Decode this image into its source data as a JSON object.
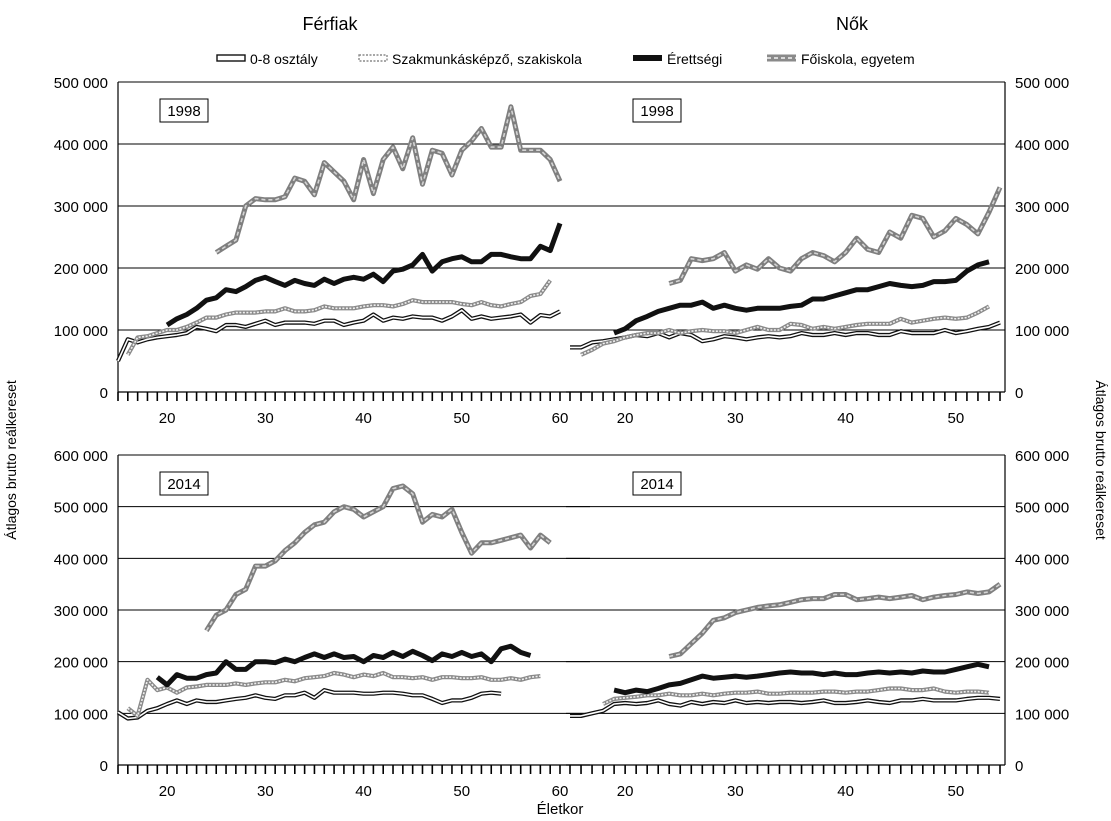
{
  "figure": {
    "panel_titles": [
      "Férfiak",
      "Nők"
    ],
    "xlabel": "Életkor",
    "ylabel": "Átlagos brutto reálkereset",
    "legend_position": "top"
  },
  "legend": [
    {
      "name": "0-8 osztály",
      "style": "outline-white"
    },
    {
      "name": "Szakmunkásképző, szakiskola",
      "style": "dotted-light"
    },
    {
      "name": "Érettségi",
      "style": "solid-black"
    },
    {
      "name": "Főiskola, egyetem",
      "style": "gray-dashed"
    }
  ],
  "colors": {
    "dark": "#111111",
    "light_gray": "#b5b5b5",
    "mid_gray": "#8a8a8a",
    "grid": "#000000"
  },
  "chart_data": [
    {
      "type": "line",
      "panel": "Férfiak",
      "year_label": "1998",
      "x_range": [
        15,
        60
      ],
      "ylim": [
        0,
        500000
      ],
      "yticks": [
        0,
        100000,
        200000,
        300000,
        400000,
        500000
      ],
      "ytick_labels": [
        "0",
        "100 000",
        "200 000",
        "300 000",
        "400 000",
        "500 000"
      ],
      "xticks": [
        20,
        30,
        40,
        50,
        60
      ],
      "y_axis_side": "left",
      "grid": true,
      "series": [
        {
          "name": "0-8 osztály",
          "start": 15,
          "values": [
            50000,
            85000,
            80000,
            85000,
            88000,
            90000,
            92000,
            95000,
            105000,
            102000,
            98000,
            108000,
            108000,
            105000,
            110000,
            115000,
            108000,
            112000,
            112000,
            112000,
            110000,
            115000,
            115000,
            108000,
            112000,
            115000,
            125000,
            115000,
            120000,
            118000,
            122000,
            120000,
            120000,
            115000,
            122000,
            132000,
            118000,
            122000,
            118000,
            120000,
            122000,
            125000,
            112000,
            124000,
            122000,
            130000
          ]
        },
        {
          "name": "Szakmunkásképző, szakiskola",
          "start": 16,
          "values": [
            60000,
            88000,
            90000,
            95000,
            100000,
            100000,
            105000,
            112000,
            120000,
            120000,
            125000,
            128000,
            128000,
            128000,
            130000,
            130000,
            135000,
            130000,
            130000,
            132000,
            138000,
            135000,
            135000,
            135000,
            138000,
            140000,
            140000,
            138000,
            142000,
            148000,
            145000,
            145000,
            145000,
            145000,
            142000,
            140000,
            145000,
            140000,
            138000,
            142000,
            145000,
            155000,
            158000,
            180000
          ]
        },
        {
          "name": "Érettségi",
          "start": 20,
          "values": [
            108000,
            118000,
            125000,
            135000,
            148000,
            152000,
            165000,
            162000,
            170000,
            180000,
            185000,
            178000,
            172000,
            180000,
            175000,
            172000,
            182000,
            175000,
            182000,
            185000,
            182000,
            190000,
            178000,
            195000,
            198000,
            205000,
            222000,
            195000,
            210000,
            215000,
            218000,
            210000,
            210000,
            222000,
            222000,
            218000,
            215000,
            215000,
            235000,
            228000,
            272000
          ]
        },
        {
          "name": "Főiskola, egyetem",
          "start": 25,
          "values": [
            225000,
            235000,
            245000,
            300000,
            312000,
            310000,
            310000,
            315000,
            345000,
            340000,
            318000,
            370000,
            355000,
            340000,
            310000,
            375000,
            320000,
            375000,
            395000,
            360000,
            410000,
            335000,
            390000,
            385000,
            350000,
            390000,
            405000,
            425000,
            395000,
            395000,
            460000,
            390000,
            390000,
            390000,
            375000,
            340000
          ]
        }
      ]
    },
    {
      "type": "line",
      "panel": "Nők",
      "year_label": "1998",
      "x_range": [
        15,
        54
      ],
      "ylim": [
        0,
        500000
      ],
      "yticks": [
        0,
        100000,
        200000,
        300000,
        400000,
        500000
      ],
      "ytick_labels": [
        "0",
        "100 000",
        "200 000",
        "300 000",
        "400 000",
        "500 000"
      ],
      "xticks": [
        20,
        30,
        40,
        50
      ],
      "y_axis_side": "right",
      "grid": true,
      "series": [
        {
          "name": "0-8 osztály",
          "start": 15,
          "values": [
            72000,
            72000,
            80000,
            82000,
            85000,
            88000,
            92000,
            90000,
            95000,
            88000,
            95000,
            92000,
            82000,
            85000,
            90000,
            88000,
            85000,
            88000,
            90000,
            88000,
            90000,
            95000,
            92000,
            92000,
            95000,
            92000,
            95000,
            95000,
            92000,
            92000,
            98000,
            95000,
            95000,
            95000,
            100000,
            95000,
            98000,
            102000,
            105000,
            112000
          ]
        },
        {
          "name": "Szakmunkásképző, szakiskola",
          "start": 16,
          "values": [
            60000,
            68000,
            78000,
            82000,
            88000,
            92000,
            95000,
            95000,
            100000,
            95000,
            98000,
            100000,
            98000,
            98000,
            95000,
            100000,
            105000,
            100000,
            100000,
            110000,
            108000,
            102000,
            105000,
            102000,
            105000,
            108000,
            110000,
            110000,
            110000,
            118000,
            112000,
            115000,
            118000,
            120000,
            118000,
            120000,
            128000,
            138000
          ]
        },
        {
          "name": "Érettségi",
          "start": 19,
          "values": [
            95000,
            102000,
            115000,
            122000,
            130000,
            135000,
            140000,
            140000,
            145000,
            135000,
            140000,
            135000,
            132000,
            135000,
            135000,
            135000,
            138000,
            140000,
            150000,
            150000,
            155000,
            160000,
            165000,
            165000,
            170000,
            175000,
            172000,
            170000,
            172000,
            178000,
            178000,
            180000,
            195000,
            205000,
            210000
          ]
        },
        {
          "name": "Főiskola, egyetem",
          "start": 24,
          "values": [
            175000,
            180000,
            215000,
            212000,
            215000,
            225000,
            195000,
            205000,
            198000,
            215000,
            200000,
            195000,
            215000,
            225000,
            220000,
            210000,
            225000,
            248000,
            230000,
            225000,
            258000,
            248000,
            285000,
            280000,
            250000,
            260000,
            280000,
            270000,
            255000,
            290000,
            330000
          ]
        }
      ]
    },
    {
      "type": "line",
      "panel": "Férfiak",
      "year_label": "2014",
      "x_range": [
        15,
        60
      ],
      "ylim": [
        0,
        600000
      ],
      "yticks": [
        0,
        100000,
        200000,
        300000,
        400000,
        500000,
        600000
      ],
      "ytick_labels": [
        "0",
        "100 000",
        "200 000",
        "300 000",
        "400 000",
        "500 000",
        "600 000"
      ],
      "xticks": [
        20,
        30,
        40,
        50,
        60
      ],
      "y_axis_side": "left",
      "grid": true,
      "series": [
        {
          "name": "0-8 osztály",
          "start": 15,
          "values": [
            102000,
            90000,
            92000,
            105000,
            110000,
            118000,
            125000,
            118000,
            125000,
            122000,
            122000,
            125000,
            128000,
            130000,
            135000,
            130000,
            128000,
            135000,
            135000,
            140000,
            130000,
            145000,
            140000,
            140000,
            140000,
            138000,
            138000,
            140000,
            140000,
            138000,
            135000,
            135000,
            128000,
            120000,
            125000,
            125000,
            130000,
            138000,
            140000,
            138000
          ]
        },
        {
          "name": "Szakmunkásképző, szakiskola",
          "start": 16,
          "values": [
            110000,
            95000,
            165000,
            145000,
            150000,
            140000,
            150000,
            152000,
            155000,
            155000,
            155000,
            158000,
            155000,
            158000,
            160000,
            160000,
            165000,
            162000,
            168000,
            170000,
            172000,
            178000,
            175000,
            170000,
            175000,
            172000,
            178000,
            170000,
            170000,
            168000,
            170000,
            165000,
            170000,
            170000,
            168000,
            168000,
            170000,
            165000,
            165000,
            168000,
            165000,
            170000,
            172000
          ]
        },
        {
          "name": "Érettségi",
          "start": 19,
          "values": [
            170000,
            155000,
            175000,
            168000,
            168000,
            175000,
            178000,
            200000,
            185000,
            185000,
            200000,
            200000,
            198000,
            205000,
            200000,
            208000,
            215000,
            208000,
            215000,
            208000,
            210000,
            200000,
            212000,
            208000,
            218000,
            210000,
            220000,
            212000,
            202000,
            215000,
            210000,
            218000,
            210000,
            215000,
            200000,
            225000,
            230000,
            218000,
            212000
          ]
        },
        {
          "name": "Főiskola, egyetem",
          "start": 24,
          "values": [
            260000,
            290000,
            300000,
            330000,
            340000,
            385000,
            385000,
            395000,
            415000,
            430000,
            450000,
            465000,
            470000,
            490000,
            500000,
            495000,
            480000,
            490000,
            500000,
            535000,
            540000,
            525000,
            470000,
            485000,
            480000,
            495000,
            450000,
            410000,
            430000,
            430000,
            435000,
            440000,
            445000,
            420000,
            445000,
            430000
          ]
        }
      ]
    },
    {
      "type": "line",
      "panel": "Nők",
      "year_label": "2014",
      "x_range": [
        15,
        54
      ],
      "ylim": [
        0,
        600000
      ],
      "yticks": [
        0,
        100000,
        200000,
        300000,
        400000,
        500000,
        600000
      ],
      "ytick_labels": [
        "0",
        "100 000",
        "200 000",
        "300 000",
        "400 000",
        "500 000",
        "600 000"
      ],
      "xticks": [
        20,
        30,
        40,
        50
      ],
      "y_axis_side": "right",
      "grid": true,
      "series": [
        {
          "name": "0-8 osztály",
          "start": 15,
          "values": [
            95000,
            95000,
            100000,
            105000,
            118000,
            120000,
            118000,
            120000,
            125000,
            118000,
            115000,
            122000,
            118000,
            122000,
            120000,
            125000,
            120000,
            122000,
            120000,
            122000,
            122000,
            120000,
            122000,
            125000,
            120000,
            120000,
            122000,
            125000,
            122000,
            120000,
            125000,
            125000,
            128000,
            125000,
            125000,
            125000,
            128000,
            130000,
            130000,
            128000
          ]
        },
        {
          "name": "Szakmunkásképző, szakiskola",
          "start": 18,
          "values": [
            118000,
            128000,
            130000,
            132000,
            135000,
            135000,
            138000,
            135000,
            135000,
            138000,
            135000,
            138000,
            140000,
            140000,
            142000,
            138000,
            138000,
            140000,
            140000,
            140000,
            142000,
            142000,
            140000,
            142000,
            142000,
            145000,
            148000,
            148000,
            145000,
            145000,
            148000,
            142000,
            140000,
            142000,
            142000,
            140000
          ]
        },
        {
          "name": "Érettségi",
          "start": 19,
          "values": [
            145000,
            140000,
            145000,
            142000,
            148000,
            155000,
            158000,
            165000,
            172000,
            168000,
            170000,
            172000,
            170000,
            172000,
            175000,
            178000,
            180000,
            178000,
            178000,
            175000,
            178000,
            175000,
            175000,
            178000,
            180000,
            178000,
            180000,
            178000,
            182000,
            180000,
            180000,
            185000,
            190000,
            195000,
            190000
          ]
        },
        {
          "name": "Főiskola, egyetem",
          "start": 24,
          "values": [
            210000,
            215000,
            235000,
            255000,
            280000,
            285000,
            295000,
            300000,
            305000,
            308000,
            310000,
            315000,
            320000,
            322000,
            322000,
            330000,
            330000,
            320000,
            322000,
            325000,
            322000,
            325000,
            328000,
            320000,
            325000,
            328000,
            330000,
            335000,
            332000,
            335000,
            350000
          ]
        }
      ]
    }
  ]
}
